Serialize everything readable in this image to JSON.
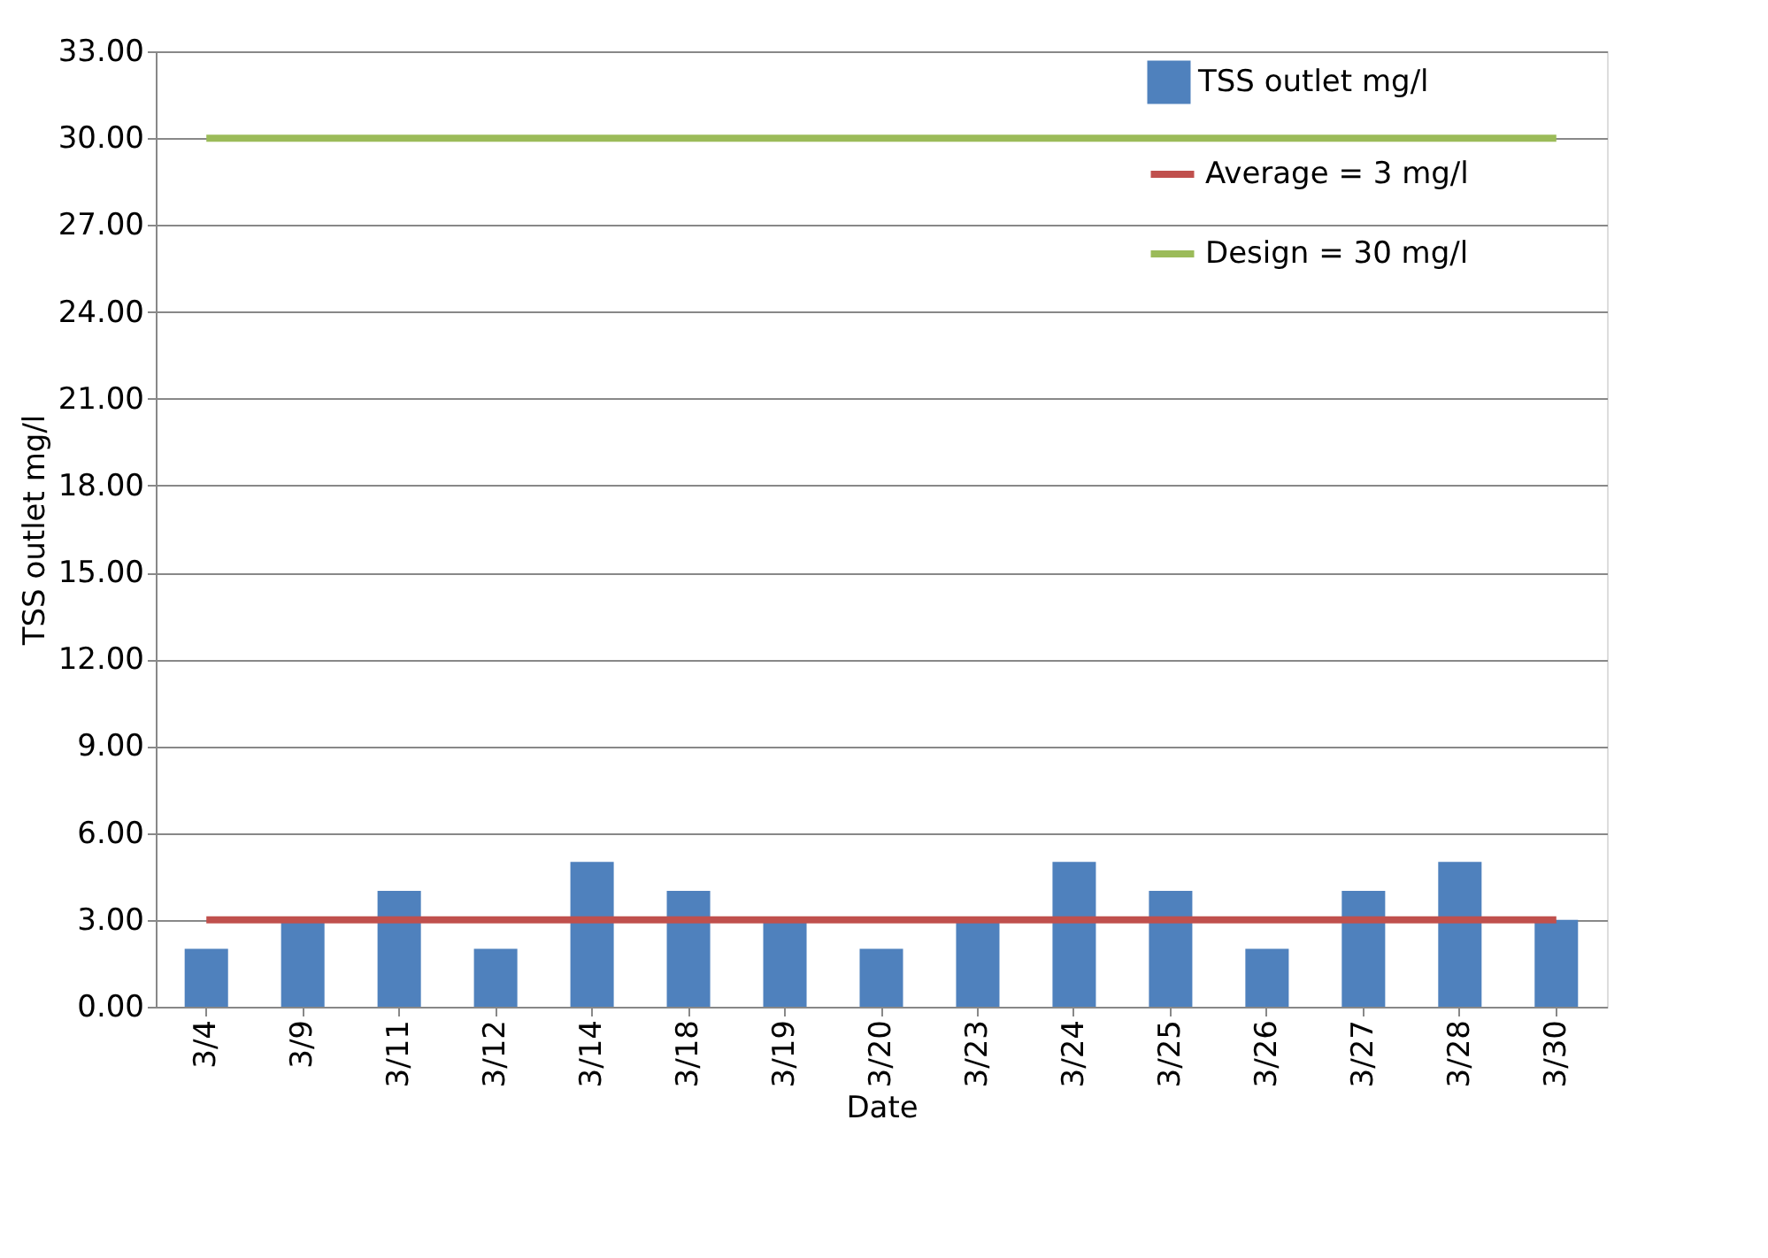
{
  "chart_data": {
    "type": "bar",
    "xlabel": "Date",
    "ylabel": "TSS outlet mg/l",
    "categories": [
      "3/4",
      "3/9",
      "3/11",
      "3/12",
      "3/14",
      "3/18",
      "3/19",
      "3/20",
      "3/23",
      "3/24",
      "3/25",
      "3/26",
      "3/27",
      "3/28",
      "3/30"
    ],
    "series": [
      {
        "name": "TSS outlet mg/l",
        "color": "#4f81bd",
        "values": [
          2,
          3,
          4,
          2,
          5,
          4,
          3,
          2,
          3,
          5,
          4,
          2,
          4,
          5,
          3
        ]
      },
      {
        "name": "Average = 3 mg/l",
        "type": "line",
        "color": "#c0504d",
        "values": [
          3,
          3,
          3,
          3,
          3,
          3,
          3,
          3,
          3,
          3,
          3,
          3,
          3,
          3,
          3
        ]
      },
      {
        "name": "Design = 30 mg/l",
        "type": "line",
        "color": "#9bbb59",
        "values": [
          30,
          30,
          30,
          30,
          30,
          30,
          30,
          30,
          30,
          30,
          30,
          30,
          30,
          30,
          30
        ]
      }
    ],
    "ylim": [
      0,
      33
    ],
    "yticks": [
      {
        "value": 0,
        "label": "0.00"
      },
      {
        "value": 3,
        "label": "3.00"
      },
      {
        "value": 6,
        "label": "6.00"
      },
      {
        "value": 9,
        "label": "9.00"
      },
      {
        "value": 12,
        "label": "12.00"
      },
      {
        "value": 15,
        "label": "15.00"
      },
      {
        "value": 18,
        "label": "18.00"
      },
      {
        "value": 21,
        "label": "21.00"
      },
      {
        "value": 24,
        "label": "24.00"
      },
      {
        "value": 27,
        "label": "27.00"
      },
      {
        "value": 30,
        "label": "30.00"
      },
      {
        "value": 33,
        "label": "33.00"
      }
    ],
    "grid": "y",
    "legend": "top right"
  }
}
